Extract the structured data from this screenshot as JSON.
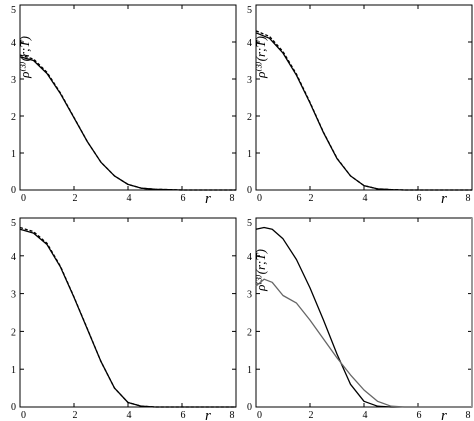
{
  "chart_data": [
    {
      "type": "line",
      "xlabel": "r",
      "ylabel": "ρ⁽³⁾(r;T)",
      "xlim": [
        0,
        8
      ],
      "ylim": [
        0,
        5
      ],
      "x_ticks": [
        "0",
        "2",
        "4",
        "6",
        "8"
      ],
      "y_ticks": [
        "0",
        "1",
        "2",
        "3",
        "4",
        "5"
      ],
      "series": [
        {
          "style": "solid",
          "color": "#000000",
          "x": [
            0,
            0.5,
            1,
            1.5,
            2,
            2.5,
            3,
            3.5,
            4,
            4.5,
            5,
            5.5,
            6,
            7,
            8
          ],
          "y": [
            3.6,
            3.5,
            3.15,
            2.6,
            1.95,
            1.3,
            0.75,
            0.38,
            0.15,
            0.05,
            0.02,
            0.01,
            0.0,
            0,
            0
          ]
        },
        {
          "style": "dashed",
          "color": "#000000",
          "x": [
            0,
            0.5,
            1,
            1.5,
            2,
            2.5,
            3,
            3.5,
            4,
            4.5,
            5,
            5.5,
            6,
            7,
            8
          ],
          "y": [
            3.65,
            3.54,
            3.18,
            2.62,
            1.96,
            1.3,
            0.75,
            0.38,
            0.15,
            0.05,
            0.02,
            0.01,
            0.0,
            0,
            0
          ]
        }
      ]
    },
    {
      "type": "line",
      "xlabel": "r",
      "ylabel": "ρ⁽³⁾(r;T)",
      "xlim": [
        0,
        8
      ],
      "ylim": [
        0,
        5
      ],
      "x_ticks": [
        "0",
        "2",
        "4",
        "6",
        "8"
      ],
      "y_ticks": [
        "0",
        "1",
        "2",
        "3",
        "4",
        "5"
      ],
      "series": [
        {
          "style": "solid",
          "color": "#000000",
          "x": [
            0,
            0.5,
            1,
            1.5,
            2,
            2.5,
            3,
            3.5,
            4,
            4.5,
            5,
            5.5,
            6,
            7,
            8
          ],
          "y": [
            4.25,
            4.1,
            3.7,
            3.1,
            2.35,
            1.55,
            0.85,
            0.38,
            0.12,
            0.03,
            0.01,
            0,
            0,
            0,
            0
          ]
        },
        {
          "style": "dashed",
          "color": "#000000",
          "x": [
            0,
            0.5,
            1,
            1.5,
            2,
            2.5,
            3,
            3.5,
            4,
            4.5,
            5,
            5.5,
            6,
            7,
            8
          ],
          "y": [
            4.3,
            4.15,
            3.74,
            3.13,
            2.37,
            1.56,
            0.86,
            0.38,
            0.12,
            0.03,
            0.01,
            0,
            0,
            0,
            0
          ]
        }
      ]
    },
    {
      "type": "line",
      "xlabel": "r",
      "ylabel": "",
      "xlim": [
        0,
        8
      ],
      "ylim": [
        0,
        5
      ],
      "x_ticks": [
        "0",
        "2",
        "4",
        "6",
        "8"
      ],
      "y_ticks": [
        "0",
        "1",
        "2",
        "3",
        "4",
        "5"
      ],
      "series": [
        {
          "style": "solid",
          "color": "#000000",
          "x": [
            0,
            0.5,
            1,
            1.5,
            2,
            2.5,
            3,
            3.5,
            4,
            4.5,
            5,
            6,
            7,
            8
          ],
          "y": [
            4.7,
            4.6,
            4.3,
            3.7,
            2.9,
            2.05,
            1.2,
            0.5,
            0.12,
            0.02,
            0,
            0,
            0,
            0
          ]
        },
        {
          "style": "dashed",
          "color": "#000000",
          "x": [
            0,
            0.5,
            1,
            1.5,
            2,
            2.5,
            3,
            3.5,
            4,
            4.5,
            5,
            6,
            7,
            8
          ],
          "y": [
            4.75,
            4.64,
            4.33,
            3.72,
            2.91,
            2.06,
            1.2,
            0.5,
            0.12,
            0.02,
            0,
            0,
            0,
            0
          ]
        }
      ]
    },
    {
      "type": "line",
      "xlabel": "r",
      "ylabel": "ρ⁽³⁾(r;T)",
      "xlim": [
        0,
        8
      ],
      "ylim": [
        0,
        5
      ],
      "x_ticks": [
        "0",
        "2",
        "4",
        "6",
        "8"
      ],
      "y_ticks": [
        "0",
        "1",
        "2",
        "3",
        "4",
        "5"
      ],
      "series": [
        {
          "style": "solid",
          "color": "#000000",
          "x": [
            0,
            0.3,
            0.6,
            1,
            1.5,
            2,
            2.5,
            3,
            3.5,
            4,
            4.5,
            5,
            6,
            7,
            8
          ],
          "y": [
            4.7,
            4.75,
            4.7,
            4.45,
            3.9,
            3.15,
            2.3,
            1.4,
            0.6,
            0.15,
            0.02,
            0,
            0,
            0,
            0
          ]
        },
        {
          "style": "solid",
          "color": "#666666",
          "x": [
            0,
            0.3,
            0.6,
            1,
            1.5,
            2,
            2.5,
            3,
            3.5,
            4,
            4.5,
            5,
            5.5,
            6,
            7,
            8
          ],
          "y": [
            3.2,
            3.38,
            3.3,
            2.95,
            2.75,
            2.3,
            1.8,
            1.3,
            0.85,
            0.45,
            0.15,
            0.02,
            0,
            0,
            0,
            0
          ]
        }
      ]
    }
  ]
}
